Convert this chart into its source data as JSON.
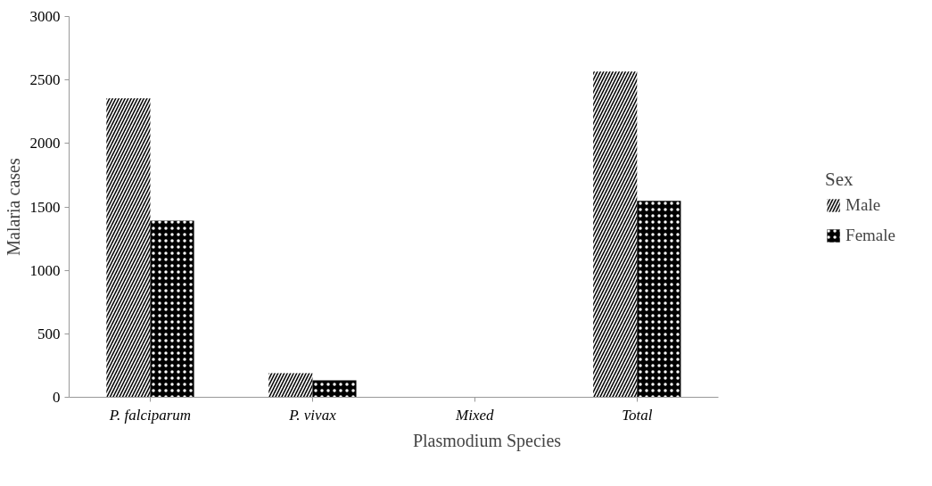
{
  "chart_data": {
    "type": "bar",
    "xlabel": "Plasmodium Species",
    "ylabel": "Malaria cases",
    "legend_title": "Sex",
    "categories": [
      "P. falciparum",
      "P. vivax",
      "Mixed",
      "Total"
    ],
    "series": [
      {
        "name": "Male",
        "color": "#f5f5f5",
        "values": [
          2356,
          190,
          null,
          2567
        ]
      },
      {
        "name": "Female",
        "color": "#000000",
        "values": [
          1391,
          133,
          null,
          1548
        ]
      }
    ],
    "ylim": [
      0,
      3000
    ],
    "yticks": [
      0,
      500,
      1000,
      1500,
      2000,
      2500,
      3000
    ],
    "grid": false,
    "legend": "right"
  }
}
